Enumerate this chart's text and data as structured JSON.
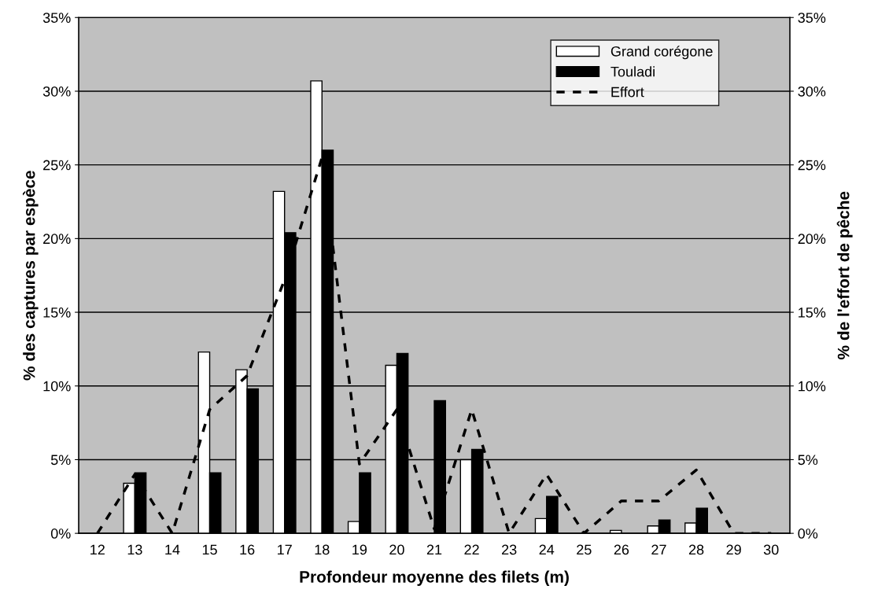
{
  "chart_data": {
    "type": "bar",
    "xlabel": "Profondeur moyenne des filets (m)",
    "ylabel": "% des captures par espèce",
    "y2label": "% de l'effort de pêche",
    "categories": [
      "12",
      "13",
      "14",
      "15",
      "16",
      "17",
      "18",
      "19",
      "20",
      "21",
      "22",
      "23",
      "24",
      "25",
      "26",
      "27",
      "28",
      "29",
      "30"
    ],
    "series": [
      {
        "name": "Grand corégone",
        "color": "#ffffff",
        "values": [
          0,
          3.4,
          0,
          12.3,
          11.1,
          23.2,
          30.7,
          0.8,
          11.4,
          0,
          5.0,
          0,
          1.0,
          0,
          0.2,
          0.5,
          0.7,
          0,
          0
        ]
      },
      {
        "name": "Touladi",
        "color": "#000000",
        "values": [
          0,
          4.1,
          0,
          4.1,
          9.8,
          20.4,
          26.0,
          4.1,
          12.2,
          9.0,
          5.7,
          0,
          2.5,
          0,
          0,
          0.9,
          1.7,
          0,
          0
        ]
      },
      {
        "name": "Effort",
        "type": "line",
        "axis": "y2",
        "color": "#000000",
        "line_style": "dashed",
        "values": [
          0,
          4.0,
          0,
          8.4,
          10.7,
          17.2,
          25.5,
          4.7,
          8.4,
          0.3,
          8.4,
          0,
          4.0,
          0,
          2.2,
          2.2,
          4.3,
          0,
          0
        ]
      }
    ],
    "ylim": [
      0,
      35
    ],
    "yticks": [
      {
        "value": 0,
        "label": "0%"
      },
      {
        "value": 5,
        "label": "5%"
      },
      {
        "value": 10,
        "label": "10%"
      },
      {
        "value": 15,
        "label": "15%"
      },
      {
        "value": 20,
        "label": "20%"
      },
      {
        "value": 25,
        "label": "25%"
      },
      {
        "value": 30,
        "label": "30%"
      },
      {
        "value": 35,
        "label": "35%"
      }
    ],
    "y2lim": [
      0,
      35
    ],
    "y2ticks": [
      {
        "value": 0,
        "label": "0%"
      },
      {
        "value": 5,
        "label": "5%"
      },
      {
        "value": 10,
        "label": "10%"
      },
      {
        "value": 15,
        "label": "15%"
      },
      {
        "value": 20,
        "label": "20%"
      },
      {
        "value": 25,
        "label": "25%"
      },
      {
        "value": 30,
        "label": "30%"
      },
      {
        "value": 35,
        "label": "35%"
      }
    ],
    "grid": "y",
    "legend": "top right"
  }
}
